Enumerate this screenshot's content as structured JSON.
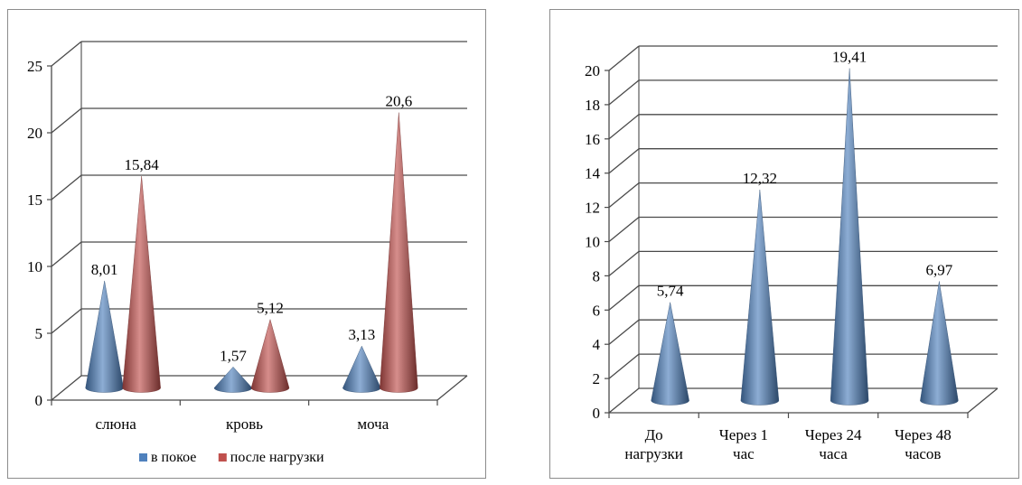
{
  "colors": {
    "blue": "#4f81bd",
    "red": "#c0504d",
    "grid": "#4a4a4a"
  },
  "chart_data": [
    {
      "type": "bar",
      "subtype": "3d-cone",
      "title": "",
      "xlabel": "",
      "ylabel": "",
      "categories": [
        "слюна",
        "кровь",
        "моча"
      ],
      "series": [
        {
          "name": "в покое",
          "color": "#4f81bd",
          "values": [
            8.01,
            1.57,
            3.13
          ],
          "labels": [
            "8,01",
            "1,57",
            "3,13"
          ]
        },
        {
          "name": "после нагрузки",
          "color": "#c0504d",
          "values": [
            15.84,
            5.12,
            20.6
          ],
          "labels": [
            "15,84",
            "5,12",
            "20,6"
          ]
        }
      ],
      "ylim": [
        0,
        25
      ],
      "yticks": [
        "0",
        "5",
        "10",
        "15",
        "20",
        "25"
      ],
      "grid": true,
      "legend": "bottom"
    },
    {
      "type": "bar",
      "subtype": "3d-cone",
      "title": "",
      "xlabel": "",
      "ylabel": "",
      "categories": [
        [
          "До",
          "нагрузки"
        ],
        [
          "Через 1",
          "час"
        ],
        [
          "Через 24",
          "часа"
        ],
        [
          "Через 48",
          "часов"
        ]
      ],
      "series": [
        {
          "color": "#4f81bd",
          "values": [
            5.74,
            12.32,
            19.41,
            6.97
          ],
          "labels": [
            "5,74",
            "12,32",
            "19,41",
            "6,97"
          ]
        }
      ],
      "ylim": [
        0,
        20
      ],
      "yticks": [
        "0",
        "2",
        "4",
        "6",
        "8",
        "10",
        "12",
        "14",
        "16",
        "18",
        "20"
      ],
      "grid": true,
      "legend": "none"
    }
  ]
}
